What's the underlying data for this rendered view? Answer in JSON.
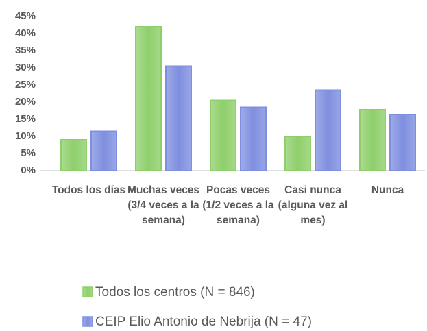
{
  "chart_data": {
    "type": "bar",
    "categories": [
      "Todos los días",
      "Muchas veces (3/4 veces a la semana)",
      "Pocas veces (1/2 veces a la semana)",
      "Casi nunca (alguna vez al mes)",
      "Nunca"
    ],
    "series": [
      {
        "name": "Todos los centros (N = 846)",
        "color": "#8fcf6b",
        "values": [
          9,
          42,
          20.5,
          10,
          17.8
        ]
      },
      {
        "name": "CEIP Elio Antonio de Nebrija (N = 47)",
        "color": "#7f8fe0",
        "values": [
          11.5,
          30.5,
          18.5,
          23.5,
          16.4
        ]
      }
    ],
    "ylim": [
      0,
      45
    ],
    "yticks": [
      {
        "value": 0,
        "label": "0%"
      },
      {
        "value": 5,
        "label": "5%"
      },
      {
        "value": 10,
        "label": "10%"
      },
      {
        "value": 15,
        "label": "15%"
      },
      {
        "value": 20,
        "label": "20%"
      },
      {
        "value": 25,
        "label": "25%"
      },
      {
        "value": 30,
        "label": "30%"
      },
      {
        "value": 35,
        "label": "35%"
      },
      {
        "value": 40,
        "label": "40%"
      },
      {
        "value": 45,
        "label": "45%"
      }
    ],
    "grid": false
  }
}
